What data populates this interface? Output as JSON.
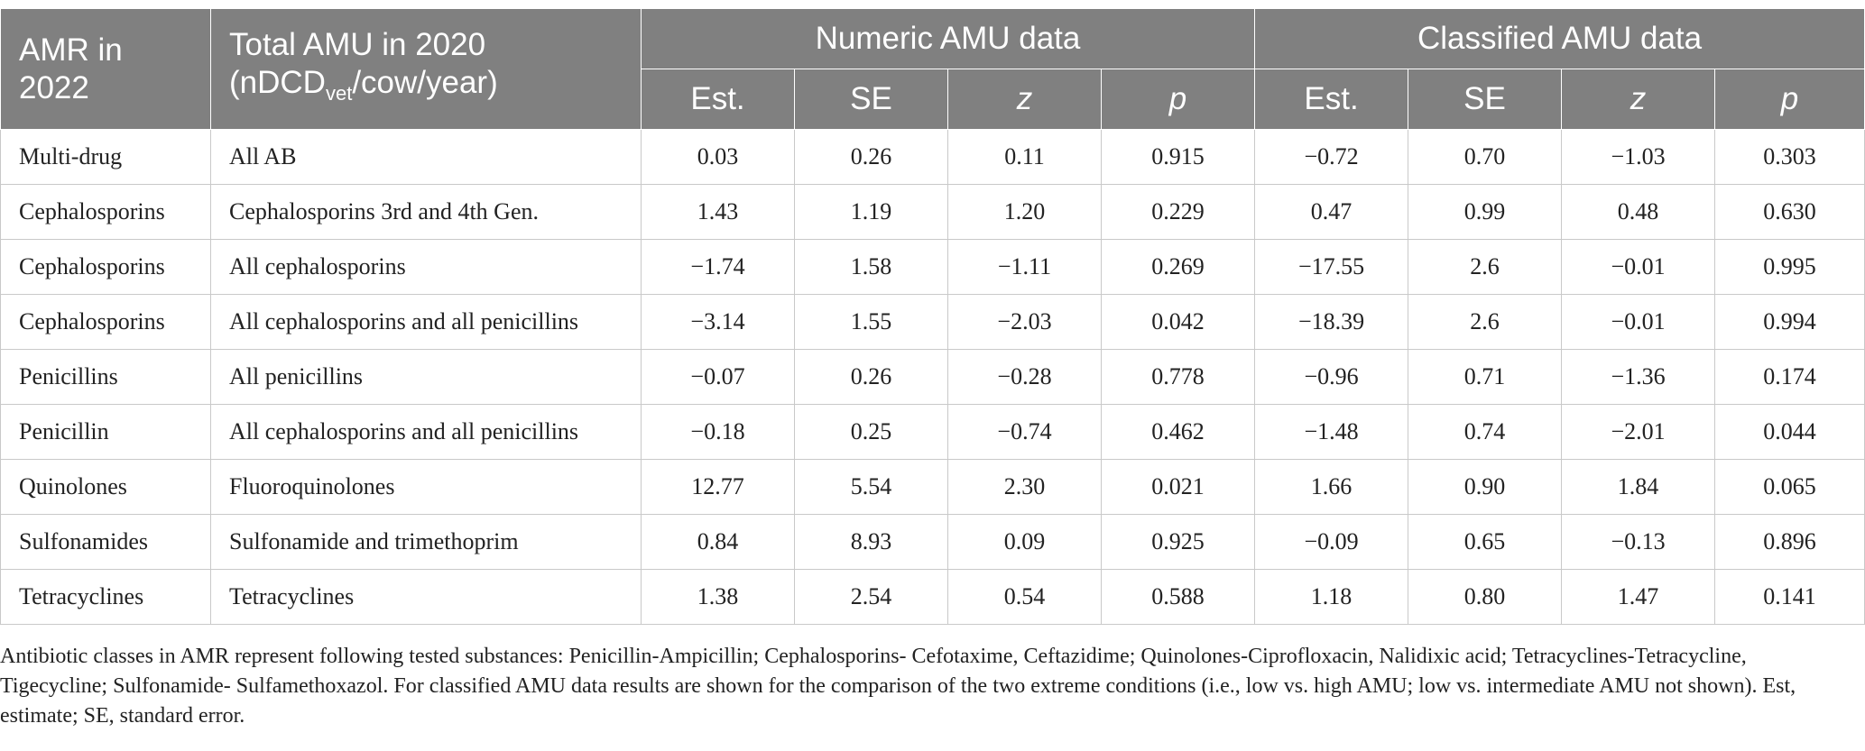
{
  "header": {
    "col1": [
      "AMR in",
      "2022"
    ],
    "col2_line1": "Total AMU in 2020",
    "col2_line2_prefix": "(nDCD",
    "col2_line2_sub": "vet",
    "col2_line2_suffix": "/cow/year)",
    "group_numeric": "Numeric AMU data",
    "group_classified": "Classified AMU data",
    "sub": [
      "Est.",
      "SE",
      "z",
      "p"
    ]
  },
  "rows": [
    {
      "amr": "Multi-drug",
      "amu": "All AB",
      "n": [
        "0.03",
        "0.26",
        "0.11",
        "0.915"
      ],
      "c": [
        "−0.72",
        "0.70",
        "−1.03",
        "0.303"
      ]
    },
    {
      "amr": "Cephalosporins",
      "amu": "Cephalosporins 3rd and 4th Gen.",
      "n": [
        "1.43",
        "1.19",
        "1.20",
        "0.229"
      ],
      "c": [
        "0.47",
        "0.99",
        "0.48",
        "0.630"
      ]
    },
    {
      "amr": "Cephalosporins",
      "amu": "All cephalosporins",
      "n": [
        "−1.74",
        "1.58",
        "−1.11",
        "0.269"
      ],
      "c": [
        "−17.55",
        "2.6",
        "−0.01",
        "0.995"
      ]
    },
    {
      "amr": "Cephalosporins",
      "amu": "All cephalosporins and all penicillins",
      "n": [
        "−3.14",
        "1.55",
        "−2.03",
        "0.042"
      ],
      "c": [
        "−18.39",
        "2.6",
        "−0.01",
        "0.994"
      ]
    },
    {
      "amr": "Penicillins",
      "amu": "All penicillins",
      "n": [
        "−0.07",
        "0.26",
        "−0.28",
        "0.778"
      ],
      "c": [
        "−0.96",
        "0.71",
        "−1.36",
        "0.174"
      ]
    },
    {
      "amr": "Penicillin",
      "amu": "All cephalosporins and all penicillins",
      "n": [
        "−0.18",
        "0.25",
        "−0.74",
        "0.462"
      ],
      "c": [
        "−1.48",
        "0.74",
        "−2.01",
        "0.044"
      ]
    },
    {
      "amr": "Quinolones",
      "amu": "Fluoroquinolones",
      "n": [
        "12.77",
        "5.54",
        "2.30",
        "0.021"
      ],
      "c": [
        "1.66",
        "0.90",
        "1.84",
        "0.065"
      ]
    },
    {
      "amr": "Sulfonamides",
      "amu": "Sulfonamide and trimethoprim",
      "n": [
        "0.84",
        "8.93",
        "0.09",
        "0.925"
      ],
      "c": [
        "−0.09",
        "0.65",
        "−0.13",
        "0.896"
      ]
    },
    {
      "amr": "Tetracyclines",
      "amu": "Tetracyclines",
      "n": [
        "1.38",
        "2.54",
        "0.54",
        "0.588"
      ],
      "c": [
        "1.18",
        "0.80",
        "1.47",
        "0.141"
      ]
    }
  ],
  "footnote": "Antibiotic classes in AMR represent following tested substances: Penicillin-Ampicillin; Cephalosporins- Cefotaxime, Ceftazidime; Quinolones-Ciprofloxacin, Nalidixic acid; Tetracyclines-Tetracycline, Tigecycline; Sulfonamide- Sulfamethoxazol. For classified AMU data results are shown for the comparison of the two extreme conditions (i.e., low vs. high AMU; low vs. intermediate AMU not shown). Est, estimate; SE, standard error."
}
